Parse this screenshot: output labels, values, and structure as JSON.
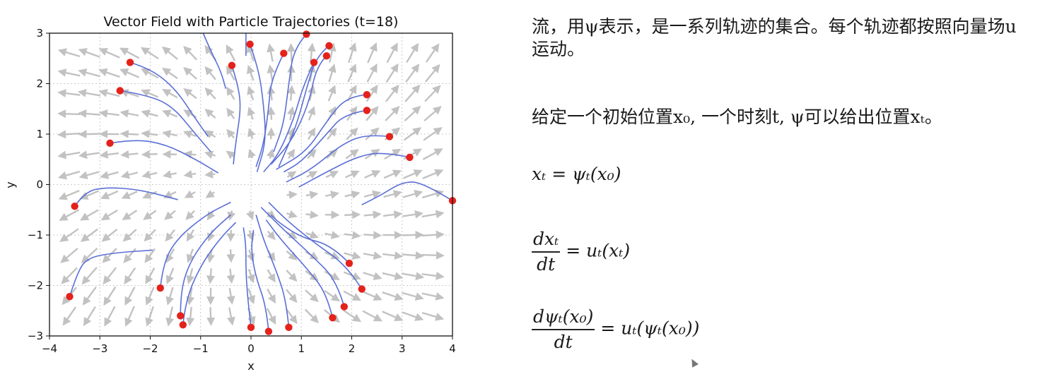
{
  "chart_data": {
    "type": "vector_field_with_trajectories",
    "title": "Vector Field with Particle Trajectories (t=18)",
    "xlabel": "x",
    "ylabel": "y",
    "xlim": [
      -4,
      4
    ],
    "ylim": [
      -3,
      3
    ],
    "xticks": [
      "−4",
      "−3",
      "−2",
      "−1",
      "0",
      "1",
      "2",
      "3",
      "4"
    ],
    "yticks": [
      "3",
      "2",
      "1",
      "0",
      "−1",
      "−2",
      "−3"
    ],
    "grid": true,
    "arrow_color": "#b8b8b8",
    "trajectory_color": "#5b6fd6",
    "particle_color": "#e4221b",
    "particles": [
      {
        "x": -2.4,
        "y": 2.42
      },
      {
        "x": -2.6,
        "y": 1.86
      },
      {
        "x": -2.8,
        "y": 0.82
      },
      {
        "x": -3.5,
        "y": -0.43
      },
      {
        "x": -3.6,
        "y": -2.22
      },
      {
        "x": -1.8,
        "y": -2.05
      },
      {
        "x": -1.4,
        "y": -2.6
      },
      {
        "x": -1.35,
        "y": -2.78
      },
      {
        "x": 0.0,
        "y": -2.83
      },
      {
        "x": 0.35,
        "y": -2.91
      },
      {
        "x": 0.75,
        "y": -2.83
      },
      {
        "x": 1.62,
        "y": -2.64
      },
      {
        "x": 1.85,
        "y": -2.42
      },
      {
        "x": 2.2,
        "y": -2.07
      },
      {
        "x": 1.95,
        "y": -1.56
      },
      {
        "x": 4.0,
        "y": -0.32
      },
      {
        "x": 3.15,
        "y": 0.54
      },
      {
        "x": 2.75,
        "y": 0.95
      },
      {
        "x": 2.3,
        "y": 1.47
      },
      {
        "x": 2.3,
        "y": 1.78
      },
      {
        "x": 1.55,
        "y": 2.75
      },
      {
        "x": 1.5,
        "y": 2.55
      },
      {
        "x": 1.25,
        "y": 2.42
      },
      {
        "x": 1.1,
        "y": 2.98
      },
      {
        "x": 0.65,
        "y": 2.6
      },
      {
        "x": -0.02,
        "y": 2.78
      },
      {
        "x": -0.38,
        "y": 2.36
      }
    ],
    "trajectories": [
      [
        [
          -2.4,
          2.42
        ],
        [
          -2.0,
          2.3
        ],
        [
          -1.5,
          1.9
        ],
        [
          -1.1,
          1.3
        ],
        [
          -0.85,
          0.95
        ]
      ],
      [
        [
          -2.6,
          1.86
        ],
        [
          -2.2,
          1.8
        ],
        [
          -1.6,
          1.6
        ],
        [
          -1.1,
          1.0
        ],
        [
          -0.8,
          0.65
        ]
      ],
      [
        [
          -2.8,
          0.82
        ],
        [
          -2.3,
          0.9
        ],
        [
          -1.7,
          0.8
        ],
        [
          -1.1,
          0.5
        ],
        [
          -0.65,
          0.23
        ]
      ],
      [
        [
          -3.5,
          -0.43
        ],
        [
          -3.3,
          -0.15
        ],
        [
          -2.9,
          -0.05
        ],
        [
          -2.2,
          -0.1
        ],
        [
          -1.45,
          -0.3
        ]
      ],
      [
        [
          -3.6,
          -2.22
        ],
        [
          -3.45,
          -1.75
        ],
        [
          -3.25,
          -1.45
        ],
        [
          -2.7,
          -1.35
        ],
        [
          -1.95,
          -1.3
        ]
      ],
      [
        [
          -1.8,
          -2.05
        ],
        [
          -1.75,
          -1.6
        ],
        [
          -1.5,
          -1.1
        ],
        [
          -0.9,
          -0.6
        ],
        [
          -0.4,
          -0.35
        ]
      ],
      [
        [
          -1.4,
          -2.6
        ],
        [
          -1.4,
          -2.1
        ],
        [
          -1.2,
          -1.5
        ],
        [
          -0.8,
          -0.95
        ],
        [
          -0.4,
          -0.6
        ]
      ],
      [
        [
          -1.35,
          -2.78
        ],
        [
          -1.3,
          -2.3
        ],
        [
          -1.0,
          -1.6
        ],
        [
          -0.6,
          -1.05
        ],
        [
          -0.3,
          -0.75
        ]
      ],
      [
        [
          0.0,
          -2.83
        ],
        [
          -0.05,
          -2.4
        ],
        [
          -0.1,
          -1.8
        ],
        [
          -0.1,
          -1.2
        ],
        [
          -0.15,
          -0.85
        ]
      ],
      [
        [
          0.35,
          -2.91
        ],
        [
          0.3,
          -2.4
        ],
        [
          0.1,
          -1.85
        ],
        [
          0.0,
          -1.3
        ],
        [
          0.05,
          -0.9
        ]
      ],
      [
        [
          0.75,
          -2.83
        ],
        [
          0.7,
          -2.3
        ],
        [
          0.5,
          -1.7
        ],
        [
          0.25,
          -1.1
        ],
        [
          0.1,
          -0.6
        ]
      ],
      [
        [
          1.62,
          -2.64
        ],
        [
          1.5,
          -2.15
        ],
        [
          1.1,
          -1.65
        ],
        [
          0.6,
          -1.1
        ],
        [
          0.3,
          -0.7
        ]
      ],
      [
        [
          1.85,
          -2.42
        ],
        [
          1.7,
          -1.9
        ],
        [
          1.2,
          -1.4
        ],
        [
          0.6,
          -0.85
        ],
        [
          0.2,
          -0.45
        ]
      ],
      [
        [
          2.2,
          -2.07
        ],
        [
          1.9,
          -1.6
        ],
        [
          1.25,
          -1.15
        ],
        [
          0.7,
          -0.7
        ],
        [
          0.35,
          -0.35
        ]
      ],
      [
        [
          1.95,
          -1.56
        ],
        [
          1.6,
          -1.2
        ],
        [
          1.0,
          -1.05
        ],
        [
          0.55,
          -0.75
        ],
        [
          0.4,
          -0.6
        ]
      ],
      [
        [
          4.0,
          -0.32
        ],
        [
          3.4,
          0.05
        ],
        [
          3.0,
          0.05
        ],
        [
          2.6,
          -0.2
        ],
        [
          2.2,
          -0.4
        ]
      ],
      [
        [
          3.15,
          0.54
        ],
        [
          2.6,
          0.65
        ],
        [
          2.1,
          0.55
        ],
        [
          1.5,
          0.25
        ],
        [
          0.95,
          -0.05
        ]
      ],
      [
        [
          2.75,
          0.95
        ],
        [
          2.3,
          1.0
        ],
        [
          1.8,
          0.8
        ],
        [
          1.2,
          0.3
        ],
        [
          0.7,
          0.05
        ]
      ],
      [
        [
          2.3,
          1.47
        ],
        [
          1.85,
          1.4
        ],
        [
          1.5,
          1.0
        ],
        [
          1.0,
          0.45
        ],
        [
          0.65,
          0.25
        ]
      ],
      [
        [
          2.3,
          1.78
        ],
        [
          1.9,
          1.75
        ],
        [
          1.5,
          1.25
        ],
        [
          1.1,
          0.65
        ],
        [
          0.5,
          0.3
        ]
      ],
      [
        [
          1.55,
          2.75
        ],
        [
          1.3,
          2.55
        ],
        [
          1.1,
          1.9
        ],
        [
          0.9,
          1.15
        ],
        [
          0.55,
          0.35
        ]
      ],
      [
        [
          1.5,
          2.55
        ],
        [
          1.3,
          2.35
        ],
        [
          1.15,
          1.6
        ],
        [
          0.8,
          0.85
        ],
        [
          0.4,
          0.4
        ]
      ],
      [
        [
          1.25,
          2.42
        ],
        [
          1.05,
          2.0
        ],
        [
          0.85,
          1.3
        ],
        [
          0.55,
          0.6
        ],
        [
          0.25,
          0.25
        ]
      ],
      [
        [
          1.1,
          2.98
        ],
        [
          0.85,
          2.7
        ],
        [
          0.75,
          2.0
        ],
        [
          0.65,
          1.2
        ],
        [
          0.45,
          0.65
        ]
      ],
      [
        [
          0.65,
          2.6
        ],
        [
          0.4,
          2.1
        ],
        [
          0.35,
          1.5
        ],
        [
          0.25,
          0.8
        ],
        [
          0.1,
          0.35
        ]
      ],
      [
        [
          -0.02,
          2.78
        ],
        [
          0.15,
          2.3
        ],
        [
          0.25,
          1.6
        ],
        [
          0.3,
          0.85
        ],
        [
          0.12,
          0.25
        ]
      ],
      [
        [
          -0.38,
          2.36
        ],
        [
          -0.25,
          1.95
        ],
        [
          -0.2,
          1.5
        ],
        [
          -0.3,
          0.85
        ],
        [
          -0.35,
          0.4
        ]
      ],
      [
        [
          -0.95,
          3.0
        ],
        [
          -0.8,
          2.65
        ],
        [
          -0.6,
          2.25
        ],
        [
          -0.5,
          1.9
        ]
      ],
      [
        [
          -0.1,
          3.0
        ],
        [
          -0.1,
          2.55
        ]
      ]
    ]
  },
  "notes": {
    "paragraph1": "流，用ψ表示，是一系列轨迹的集合。每个轨迹都按照向量场u运动。",
    "paragraph2": "给定一个初始位置x₀, 一个时刻t, ψ可以给出位置xₜ。",
    "eq1": "xₜ = ψₜ(x₀)",
    "eq2_num": "dxₜ",
    "eq2_den": "dt",
    "eq2_rhs": "= uₜ(xₜ)",
    "eq3_num": "dψₜ(x₀)",
    "eq3_den": "dt",
    "eq3_rhs": "= uₜ(ψₜ(x₀))"
  }
}
